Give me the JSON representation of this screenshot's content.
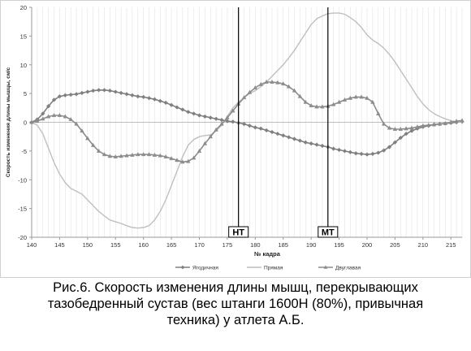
{
  "chart_data": {
    "type": "line",
    "xlabel": "№ кадра",
    "ylabel": "Скорость изменения длины мышцы, см/с",
    "xlim": [
      140,
      217
    ],
    "ylim": [
      -20,
      20
    ],
    "x_ticks": [
      140,
      145,
      150,
      155,
      160,
      165,
      170,
      175,
      180,
      185,
      190,
      195,
      200,
      205,
      210,
      215
    ],
    "y_ticks": [
      -20,
      -15,
      -10,
      -5,
      0,
      5,
      10,
      15,
      20
    ],
    "grid": "vertical every frame",
    "legend": "bottom",
    "markers": [
      {
        "label": "НТ",
        "x": 177
      },
      {
        "label": "МТ",
        "x": 193
      }
    ],
    "series": [
      {
        "name": "Ягодичная",
        "color": "#7f7f7f",
        "marker": "diamond",
        "x": [
          140,
          141,
          142,
          143,
          144,
          145,
          146,
          147,
          148,
          149,
          150,
          151,
          152,
          153,
          154,
          155,
          156,
          157,
          158,
          159,
          160,
          161,
          162,
          163,
          164,
          165,
          166,
          167,
          168,
          169,
          170,
          171,
          172,
          173,
          174,
          175,
          176,
          177,
          178,
          179,
          180,
          181,
          182,
          183,
          184,
          185,
          186,
          187,
          188,
          189,
          190,
          191,
          192,
          193,
          194,
          195,
          196,
          197,
          198,
          199,
          200,
          201,
          202,
          203,
          204,
          205,
          206,
          207,
          208,
          209,
          210,
          211,
          212,
          213,
          214,
          215,
          216,
          217
        ],
        "y": [
          0,
          0.5,
          1.5,
          2.8,
          3.9,
          4.5,
          4.7,
          4.8,
          4.9,
          5.1,
          5.3,
          5.5,
          5.6,
          5.6,
          5.5,
          5.3,
          5.1,
          4.9,
          4.7,
          4.5,
          4.4,
          4.2,
          4.0,
          3.7,
          3.4,
          3.0,
          2.6,
          2.2,
          1.8,
          1.5,
          1.2,
          1.0,
          0.8,
          0.6,
          0.4,
          0.2,
          0.1,
          -0.1,
          -0.3,
          -0.6,
          -0.9,
          -1.1,
          -1.4,
          -1.7,
          -2.0,
          -2.3,
          -2.6,
          -2.9,
          -3.2,
          -3.5,
          -3.7,
          -3.9,
          -4.1,
          -4.3,
          -4.6,
          -4.8,
          -5.0,
          -5.2,
          -5.4,
          -5.5,
          -5.6,
          -5.5,
          -5.3,
          -4.9,
          -4.3,
          -3.5,
          -2.7,
          -2.0,
          -1.5,
          -1.1,
          -0.8,
          -0.6,
          -0.4,
          -0.3,
          -0.2,
          -0.1,
          0,
          0.1
        ]
      },
      {
        "name": "Прямая",
        "color": "#bfbfbf",
        "marker": "none",
        "x": [
          140,
          141,
          142,
          143,
          144,
          145,
          146,
          147,
          148,
          149,
          150,
          151,
          152,
          153,
          154,
          155,
          156,
          157,
          158,
          159,
          160,
          161,
          162,
          163,
          164,
          165,
          166,
          167,
          168,
          169,
          170,
          171,
          172,
          173,
          174,
          175,
          176,
          177,
          178,
          179,
          180,
          181,
          182,
          183,
          184,
          185,
          186,
          187,
          188,
          189,
          190,
          191,
          192,
          193,
          194,
          195,
          196,
          197,
          198,
          199,
          200,
          201,
          202,
          203,
          204,
          205,
          206,
          207,
          208,
          209,
          210,
          211,
          212,
          213,
          214,
          215,
          216,
          217
        ],
        "y": [
          0,
          -0.5,
          -2,
          -4.5,
          -7,
          -9,
          -10.5,
          -11.5,
          -12,
          -12.5,
          -13.5,
          -14.5,
          -15.5,
          -16.3,
          -17,
          -17.3,
          -17.6,
          -18,
          -18.3,
          -18.4,
          -18.3,
          -18,
          -17,
          -15.5,
          -13.5,
          -11,
          -8.5,
          -6,
          -4,
          -3,
          -2.5,
          -2.3,
          -2.2,
          -1.5,
          -0.5,
          1,
          2.5,
          3.5,
          4.3,
          5,
          5.5,
          6.2,
          7,
          8,
          9,
          10,
          11.2,
          12.5,
          14,
          15.5,
          17,
          18,
          18.5,
          18.9,
          19,
          19,
          18.8,
          18.2,
          17.5,
          16.5,
          15.2,
          14.3,
          13.7,
          12.9,
          11.8,
          10.5,
          9,
          7.5,
          6,
          4.5,
          3.2,
          2.2,
          1.5,
          1,
          0.6,
          0.3,
          0.1,
          0
        ]
      },
      {
        "name": "Двуглавая",
        "color": "#8c8c8c",
        "marker": "triangle",
        "x": [
          140,
          141,
          142,
          143,
          144,
          145,
          146,
          147,
          148,
          149,
          150,
          151,
          152,
          153,
          154,
          155,
          156,
          157,
          158,
          159,
          160,
          161,
          162,
          163,
          164,
          165,
          166,
          167,
          168,
          169,
          170,
          171,
          172,
          173,
          174,
          175,
          176,
          177,
          178,
          179,
          180,
          181,
          182,
          183,
          184,
          185,
          186,
          187,
          188,
          189,
          190,
          191,
          192,
          193,
          194,
          195,
          196,
          197,
          198,
          199,
          200,
          201,
          202,
          203,
          204,
          205,
          206,
          207,
          208,
          209,
          210,
          211,
          212,
          213,
          214,
          215,
          216,
          217
        ],
        "y": [
          0,
          0.2,
          0.6,
          1.0,
          1.2,
          1.2,
          1.0,
          0.5,
          -0.3,
          -1.5,
          -2.8,
          -4.0,
          -5.0,
          -5.6,
          -5.9,
          -6.0,
          -5.9,
          -5.8,
          -5.7,
          -5.6,
          -5.6,
          -5.6,
          -5.7,
          -5.8,
          -6.0,
          -6.3,
          -6.6,
          -6.9,
          -6.8,
          -6.2,
          -5.0,
          -3.7,
          -2.5,
          -1.3,
          -0.3,
          0.8,
          2.0,
          3.2,
          4.3,
          5.2,
          6.0,
          6.6,
          7.0,
          7.0,
          6.9,
          6.7,
          6.2,
          5.5,
          4.5,
          3.5,
          2.9,
          2.7,
          2.7,
          2.8,
          3.1,
          3.5,
          3.9,
          4.2,
          4.4,
          4.4,
          4.2,
          3.5,
          1.5,
          -0.3,
          -1.0,
          -1.2,
          -1.2,
          -1.1,
          -1.0,
          -0.8,
          -0.6,
          -0.5,
          -0.4,
          -0.3,
          -0.2,
          0,
          0.2,
          0.3
        ]
      }
    ]
  },
  "caption": {
    "line1": "Рис.6. Скорость изменения длины мышц, перекрывающих",
    "line2": "тазобедренный сустав (вес штанги 1600Н (80%), привычная",
    "line3": "техника) у атлета А.Б."
  }
}
